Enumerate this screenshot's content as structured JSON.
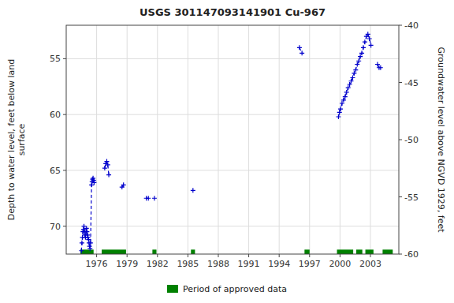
{
  "chart_data": {
    "type": "line",
    "title": "USGS 301147093141901 Cu-967",
    "ylabel": "Depth to water level, feet below land\nsurface",
    "y2label": "Groundwater level above NGVD 1929, feet",
    "xlim": [
      1973.0,
      2005.8
    ],
    "ylim": [
      72.5,
      52.0
    ],
    "y2lim": [
      -60,
      -40
    ],
    "xticks": [
      1976,
      1979,
      1982,
      1985,
      1988,
      1991,
      1994,
      1997,
      2000,
      2003
    ],
    "yticks": [
      55,
      60,
      65,
      70
    ],
    "y2ticks": [
      -40,
      -45,
      -50,
      -55,
      -60
    ],
    "grid": true,
    "legend": "bottom",
    "x": [
      1974.5,
      1974.55,
      1974.6,
      1974.65,
      1974.7,
      1974.75,
      1974.8,
      1974.85,
      1974.9,
      1974.95,
      1975.0,
      1975.05,
      1975.1,
      1975.15,
      1975.2,
      1975.25,
      1975.3,
      1975.35,
      1975.4,
      1975.5,
      1975.55,
      1975.6,
      1975.65,
      1975.7,
      1975.75,
      null,
      1976.8,
      1976.9,
      1977.0,
      1977.1,
      1977.2,
      null,
      1978.5,
      1978.65,
      null,
      1980.9,
      1981.1,
      null,
      1981.7,
      null,
      1985.5,
      null,
      1996.0,
      1996.25,
      null,
      1999.85,
      1999.95,
      2000.05,
      2000.2,
      2000.35,
      2000.5,
      2000.65,
      2000.8,
      2000.95,
      2001.1,
      2001.25,
      2001.4,
      2001.55,
      2001.7,
      2001.85,
      2002.0,
      2002.15,
      2002.3,
      2002.45,
      2002.6,
      2002.75,
      2002.9,
      2003.05,
      null,
      2003.7,
      2003.85,
      2004.0
    ],
    "series": [
      {
        "color": "#0000cc",
        "marker": "plus",
        "line_style": "dashed",
        "values": [
          72.2,
          71.5,
          71.0,
          70.5,
          70.3,
          70.0,
          70.5,
          70.8,
          71.0,
          70.5,
          70.2,
          70.5,
          70.8,
          71.0,
          71.2,
          71.5,
          71.8,
          72.0,
          71.5,
          66.3,
          66.0,
          65.8,
          65.7,
          65.9,
          66.1,
          null,
          64.8,
          64.4,
          64.2,
          64.5,
          65.4,
          null,
          66.5,
          66.3,
          null,
          67.5,
          67.5,
          null,
          67.5,
          null,
          66.8,
          null,
          54.0,
          54.5,
          null,
          60.2,
          59.8,
          59.5,
          59.0,
          58.7,
          58.4,
          58.0,
          57.6,
          57.3,
          57.0,
          56.7,
          56.3,
          56.0,
          55.5,
          55.2,
          54.8,
          54.5,
          54.0,
          53.5,
          53.0,
          52.8,
          53.2,
          53.8,
          null,
          55.5,
          55.8,
          55.8
        ]
      }
    ],
    "bands": {
      "name": "Period of approved data",
      "color": "#008000",
      "ymin": 72.1,
      "ymax": 72.5,
      "ranges": [
        [
          1974.4,
          1975.7
        ],
        [
          1976.5,
          1978.9
        ],
        [
          1981.5,
          1981.9
        ],
        [
          1985.3,
          1985.7
        ],
        [
          1996.5,
          1997.0
        ],
        [
          1999.7,
          2001.3
        ],
        [
          2001.6,
          2002.2
        ],
        [
          2002.5,
          2003.3
        ],
        [
          2004.2,
          2005.2
        ]
      ]
    }
  }
}
